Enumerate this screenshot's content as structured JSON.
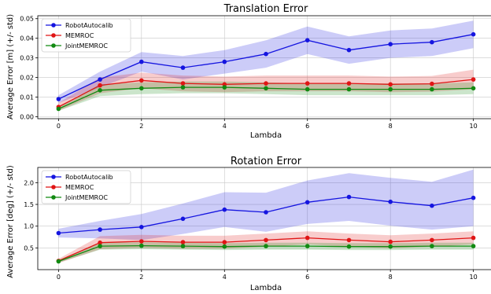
{
  "chart_data": [
    {
      "type": "line",
      "title": "Translation Error",
      "xlabel": "Lambda",
      "ylabel": "Average Error [m] (+/- std)",
      "xlim": [
        -0.5,
        10.5
      ],
      "ylim": [
        -0.001,
        0.0515
      ],
      "xticks": [
        0,
        2,
        4,
        6,
        8,
        10
      ],
      "xtick_labels": [
        "0",
        "2",
        "4",
        "6",
        "8",
        "10"
      ],
      "yticks": [
        0.0,
        0.01,
        0.02,
        0.03,
        0.04,
        0.05
      ],
      "ytick_labels": [
        "0.00",
        "0.01",
        "0.02",
        "0.03",
        "0.04",
        "0.05"
      ],
      "grid": true,
      "legend": "top-left",
      "x": [
        0,
        1,
        2,
        3,
        4,
        5,
        6,
        7,
        8,
        9,
        10
      ],
      "series": [
        {
          "name": "RobotAutocalib",
          "color": "#1515e0",
          "values": [
            0.009,
            0.019,
            0.028,
            0.025,
            0.028,
            0.032,
            0.039,
            0.034,
            0.037,
            0.038,
            0.042
          ],
          "std": [
            0.002,
            0.004,
            0.005,
            0.006,
            0.006,
            0.007,
            0.007,
            0.007,
            0.007,
            0.007,
            0.007
          ]
        },
        {
          "name": "MEMROC",
          "color": "#e01515",
          "values": [
            0.005,
            0.016,
            0.0185,
            0.017,
            0.0165,
            0.017,
            0.017,
            0.017,
            0.0165,
            0.0168,
            0.019
          ],
          "std": [
            0.002,
            0.004,
            0.004,
            0.004,
            0.004,
            0.004,
            0.004,
            0.004,
            0.004,
            0.004,
            0.005
          ]
        },
        {
          "name": "JointMEMROC",
          "color": "#128a12",
          "values": [
            0.004,
            0.0135,
            0.0145,
            0.015,
            0.015,
            0.0145,
            0.014,
            0.014,
            0.014,
            0.014,
            0.0145
          ],
          "std": [
            0.001,
            0.003,
            0.003,
            0.003,
            0.003,
            0.003,
            0.003,
            0.003,
            0.003,
            0.003,
            0.003
          ]
        }
      ]
    },
    {
      "type": "line",
      "title": "Rotation Error",
      "xlabel": "Lambda",
      "ylabel": "Average Error [deg] (+/- std)",
      "xlim": [
        -0.5,
        10.5
      ],
      "ylim": [
        0.0,
        2.35
      ],
      "xticks": [
        0,
        2,
        4,
        6,
        8,
        10
      ],
      "xtick_labels": [
        "0",
        "2",
        "4",
        "6",
        "8",
        "10"
      ],
      "yticks": [
        0.5,
        1.0,
        1.5,
        2.0
      ],
      "ytick_labels": [
        "0.5",
        "1.0",
        "1.5",
        "2.0"
      ],
      "grid": true,
      "legend": "top-left",
      "x": [
        0,
        1,
        2,
        3,
        4,
        5,
        6,
        7,
        8,
        9,
        10
      ],
      "series": [
        {
          "name": "RobotAutocalib",
          "color": "#1515e0",
          "values": [
            0.84,
            0.92,
            0.98,
            1.17,
            1.38,
            1.32,
            1.55,
            1.67,
            1.56,
            1.47,
            1.65
          ],
          "std": [
            0.1,
            0.2,
            0.3,
            0.35,
            0.4,
            0.45,
            0.5,
            0.55,
            0.55,
            0.55,
            0.65
          ]
        },
        {
          "name": "MEMROC",
          "color": "#e01515",
          "values": [
            0.2,
            0.62,
            0.65,
            0.63,
            0.63,
            0.68,
            0.73,
            0.68,
            0.64,
            0.68,
            0.73
          ],
          "std": [
            0.05,
            0.15,
            0.15,
            0.15,
            0.15,
            0.15,
            0.15,
            0.15,
            0.15,
            0.15,
            0.15
          ]
        },
        {
          "name": "JointMEMROC",
          "color": "#128a12",
          "values": [
            0.19,
            0.54,
            0.55,
            0.54,
            0.53,
            0.54,
            0.54,
            0.53,
            0.53,
            0.54,
            0.54
          ],
          "std": [
            0.03,
            0.08,
            0.08,
            0.08,
            0.08,
            0.08,
            0.08,
            0.08,
            0.08,
            0.08,
            0.08
          ]
        }
      ]
    }
  ]
}
